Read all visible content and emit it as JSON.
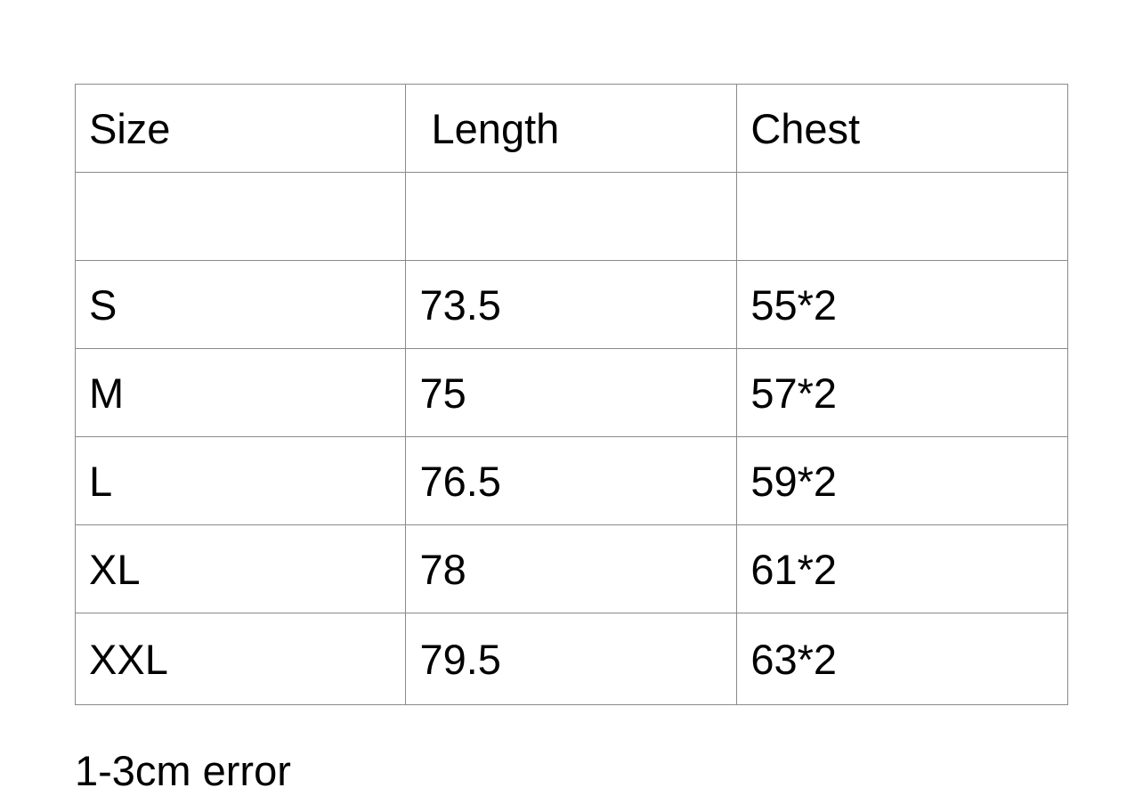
{
  "table": {
    "headers": [
      "Size",
      " Length",
      "Chest"
    ],
    "rows": [
      [
        "",
        "",
        ""
      ],
      [
        "S",
        "73.5",
        "55*2"
      ],
      [
        "M",
        "75",
        "57*2"
      ],
      [
        "L",
        "76.5",
        "59*2"
      ],
      [
        "XL",
        "78",
        "61*2"
      ],
      [
        "XXL",
        "79.5",
        "63*2"
      ]
    ]
  },
  "note": "1-3cm error"
}
